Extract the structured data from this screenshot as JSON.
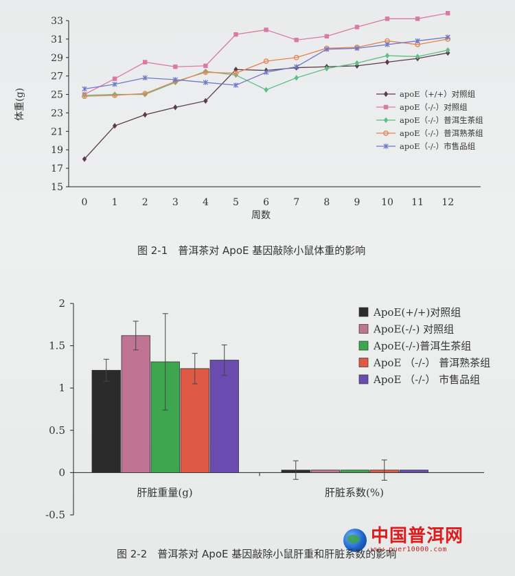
{
  "chart_data": [
    {
      "type": "line",
      "xlabel": "周数",
      "ylabel": "体重(g)",
      "x": [
        0,
        1,
        2,
        3,
        4,
        5,
        6,
        7,
        8,
        9,
        10,
        11,
        12
      ],
      "ylim": [
        15,
        33
      ],
      "yticks": [
        15,
        17,
        19,
        21,
        23,
        25,
        27,
        29,
        31,
        33
      ],
      "grid": false,
      "legend_position": "right",
      "series": [
        {
          "name": "apoE（+/+）对照组",
          "color": "#5a3b4a",
          "marker": "diamond",
          "values": [
            18.0,
            21.6,
            22.8,
            23.6,
            24.3,
            27.7,
            27.6,
            27.9,
            28.0,
            28.1,
            28.5,
            28.9,
            29.5
          ]
        },
        {
          "name": "apoE（-/-）对照组",
          "color": "#d97aa5",
          "marker": "square",
          "values": [
            25.0,
            26.7,
            28.5,
            28.0,
            28.1,
            31.5,
            32.0,
            30.9,
            31.3,
            32.3,
            33.2,
            33.2,
            33.8
          ]
        },
        {
          "name": "apoE（-/-）普洱生茶组",
          "color": "#5fbd86",
          "marker": "diamond",
          "values": [
            24.9,
            25.0,
            25.0,
            26.3,
            27.5,
            27.1,
            25.5,
            26.8,
            27.8,
            28.4,
            29.2,
            29.1,
            29.8
          ]
        },
        {
          "name": "apoE（-/-）普洱熟茶组",
          "color": "#e8804f",
          "marker": "circle",
          "values": [
            24.8,
            24.9,
            25.1,
            26.4,
            27.4,
            27.3,
            28.6,
            29.0,
            30.0,
            30.1,
            30.8,
            30.4,
            31.0
          ]
        },
        {
          "name": "apoE（-/-）市售品组",
          "color": "#6e79c7",
          "marker": "asterisk",
          "values": [
            25.6,
            26.1,
            26.8,
            26.6,
            26.3,
            26.0,
            27.4,
            28.0,
            29.9,
            30.0,
            30.4,
            30.8,
            31.2
          ]
        }
      ]
    },
    {
      "type": "bar",
      "categories": [
        "肝脏重量(g)",
        "肝脏系数(%)"
      ],
      "ylim": [
        -0.5,
        2
      ],
      "yticks": [
        -0.5,
        0,
        0.5,
        1,
        1.5,
        2
      ],
      "grid": false,
      "legend_position": "right",
      "series": [
        {
          "name": "ApoE(+/+)对照组",
          "color": "#2b2b2b",
          "values": [
            1.21,
            0.03
          ],
          "errors": [
            0.13,
            0.11
          ]
        },
        {
          "name": "ApoE(-/-) 对照组",
          "color": "#c07494",
          "values": [
            1.62,
            0.03
          ],
          "errors": [
            0.17,
            0.0
          ]
        },
        {
          "name": "ApoE(-/-)普洱生茶组",
          "color": "#3fa650",
          "values": [
            1.31,
            0.03
          ],
          "errors": [
            0.57,
            0.0
          ]
        },
        {
          "name": "ApoE （-/-） 普洱熟茶组",
          "color": "#de5a45",
          "values": [
            1.23,
            0.03
          ],
          "errors": [
            0.18,
            0.12
          ]
        },
        {
          "name": "ApoE （-/-） 市售品组",
          "color": "#6a4bb0",
          "values": [
            1.33,
            0.03
          ],
          "errors": [
            0.18,
            0.0
          ]
        }
      ]
    }
  ],
  "captions": {
    "fig1": "图 2-1　普洱茶对 ApoE 基因敲除小鼠体重的影响",
    "fig2": "图 2-2　普洱茶对 ApoE 基因敲除小鼠肝重和肝脏系数的影响"
  },
  "watermark": {
    "title": "中国普洱网",
    "url": "www.puer10000.com"
  },
  "colors": {
    "background": "#eceeee",
    "axis": "#222222"
  }
}
